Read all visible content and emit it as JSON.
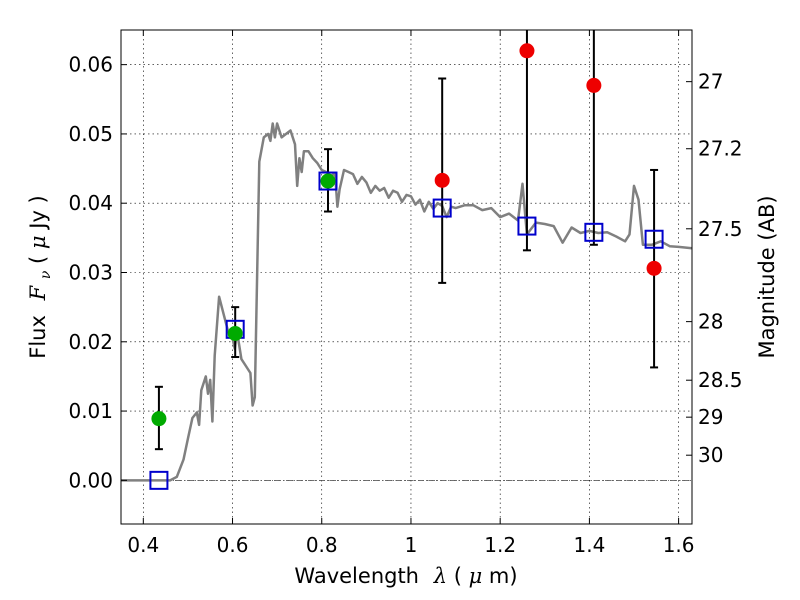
{
  "chart_data": {
    "type": "scatter",
    "xlabel": "Wavelength",
    "xlabel_symbol": "λ",
    "xlabel_unit_open": " (",
    "xlabel_unit_mu": "μ",
    "xlabel_unit_close": "m)",
    "ylabel": "Flux",
    "ylabel_symbol": "F",
    "ylabel_sub": "ν",
    "ylabel_unit_open": " ( ",
    "ylabel_unit_mu": "μ",
    "ylabel_unit_close": "Jy )",
    "y2label": "Magnitude (AB)",
    "xlim": [
      0.35,
      1.63
    ],
    "ylim": [
      -0.0063,
      0.065
    ],
    "grid": true,
    "x_ticks": [
      {
        "v": 0.4,
        "label": "0.4"
      },
      {
        "v": 0.6,
        "label": "0.6"
      },
      {
        "v": 0.8,
        "label": "0.8"
      },
      {
        "v": 1.0,
        "label": "1"
      },
      {
        "v": 1.2,
        "label": "1.2"
      },
      {
        "v": 1.4,
        "label": "1.4"
      },
      {
        "v": 1.6,
        "label": "1.6"
      }
    ],
    "y_ticks": [
      {
        "v": 0.0,
        "label": "0.00"
      },
      {
        "v": 0.01,
        "label": "0.01"
      },
      {
        "v": 0.02,
        "label": "0.02"
      },
      {
        "v": 0.03,
        "label": "0.03"
      },
      {
        "v": 0.04,
        "label": "0.04"
      },
      {
        "v": 0.05,
        "label": "0.05"
      },
      {
        "v": 0.06,
        "label": "0.06"
      }
    ],
    "mag_ticks": [
      {
        "mag": 27,
        "label": "27"
      },
      {
        "mag": 27.2,
        "label": "27.2"
      },
      {
        "mag": 27.5,
        "label": "27.5"
      },
      {
        "mag": 28,
        "label": "28"
      },
      {
        "mag": 28.5,
        "label": "28.5"
      },
      {
        "mag": 29,
        "label": "29"
      },
      {
        "mag": 30,
        "label": "30"
      }
    ],
    "model_color": "#808080",
    "model_spectrum": [
      [
        0.35,
        0.0
      ],
      [
        0.46,
        0.0
      ],
      [
        0.475,
        0.0005
      ],
      [
        0.49,
        0.003
      ],
      [
        0.5,
        0.006
      ],
      [
        0.51,
        0.009
      ],
      [
        0.52,
        0.0098
      ],
      [
        0.525,
        0.008
      ],
      [
        0.53,
        0.013
      ],
      [
        0.54,
        0.015
      ],
      [
        0.545,
        0.0125
      ],
      [
        0.55,
        0.0145
      ],
      [
        0.555,
        0.0085
      ],
      [
        0.56,
        0.018
      ],
      [
        0.57,
        0.0265
      ],
      [
        0.58,
        0.024
      ],
      [
        0.59,
        0.0215
      ],
      [
        0.6,
        0.0205
      ],
      [
        0.605,
        0.019
      ],
      [
        0.61,
        0.0215
      ],
      [
        0.615,
        0.0195
      ],
      [
        0.62,
        0.0175
      ],
      [
        0.63,
        0.0165
      ],
      [
        0.64,
        0.0155
      ],
      [
        0.645,
        0.0108
      ],
      [
        0.65,
        0.012
      ],
      [
        0.66,
        0.046
      ],
      [
        0.67,
        0.0495
      ],
      [
        0.68,
        0.05
      ],
      [
        0.685,
        0.049
      ],
      [
        0.69,
        0.0515
      ],
      [
        0.695,
        0.0495
      ],
      [
        0.7,
        0.0515
      ],
      [
        0.71,
        0.0495
      ],
      [
        0.72,
        0.05
      ],
      [
        0.73,
        0.0505
      ],
      [
        0.74,
        0.0485
      ],
      [
        0.745,
        0.0425
      ],
      [
        0.75,
        0.0465
      ],
      [
        0.755,
        0.0445
      ],
      [
        0.76,
        0.0475
      ],
      [
        0.77,
        0.0475
      ],
      [
        0.78,
        0.0465
      ],
      [
        0.79,
        0.0458
      ],
      [
        0.8,
        0.0448
      ],
      [
        0.81,
        0.0445
      ],
      [
        0.82,
        0.044
      ],
      [
        0.83,
        0.0442
      ],
      [
        0.835,
        0.0395
      ],
      [
        0.84,
        0.042
      ],
      [
        0.85,
        0.0448
      ],
      [
        0.86,
        0.0445
      ],
      [
        0.87,
        0.0442
      ],
      [
        0.88,
        0.0428
      ],
      [
        0.89,
        0.0438
      ],
      [
        0.9,
        0.043
      ],
      [
        0.91,
        0.0415
      ],
      [
        0.92,
        0.0425
      ],
      [
        0.93,
        0.0418
      ],
      [
        0.94,
        0.0422
      ],
      [
        0.95,
        0.0408
      ],
      [
        0.96,
        0.0418
      ],
      [
        0.97,
        0.0415
      ],
      [
        0.98,
        0.0402
      ],
      [
        0.99,
        0.0412
      ],
      [
        1.0,
        0.041
      ],
      [
        1.01,
        0.0398
      ],
      [
        1.02,
        0.0405
      ],
      [
        1.03,
        0.0388
      ],
      [
        1.04,
        0.0402
      ],
      [
        1.05,
        0.0392
      ],
      [
        1.06,
        0.04
      ],
      [
        1.07,
        0.0396
      ],
      [
        1.08,
        0.038
      ],
      [
        1.09,
        0.0395
      ],
      [
        1.1,
        0.0393
      ],
      [
        1.12,
        0.0397
      ],
      [
        1.14,
        0.0397
      ],
      [
        1.16,
        0.039
      ],
      [
        1.18,
        0.0393
      ],
      [
        1.2,
        0.038
      ],
      [
        1.22,
        0.0385
      ],
      [
        1.24,
        0.0375
      ],
      [
        1.25,
        0.0428
      ],
      [
        1.26,
        0.0355
      ],
      [
        1.28,
        0.0372
      ],
      [
        1.3,
        0.037
      ],
      [
        1.32,
        0.0367
      ],
      [
        1.34,
        0.0343
      ],
      [
        1.36,
        0.0365
      ],
      [
        1.38,
        0.0357
      ],
      [
        1.4,
        0.036
      ],
      [
        1.42,
        0.0357
      ],
      [
        1.44,
        0.0358
      ],
      [
        1.46,
        0.0352
      ],
      [
        1.48,
        0.0345
      ],
      [
        1.49,
        0.0355
      ],
      [
        1.5,
        0.0425
      ],
      [
        1.51,
        0.0405
      ],
      [
        1.52,
        0.034
      ],
      [
        1.54,
        0.034
      ],
      [
        1.56,
        0.0345
      ],
      [
        1.58,
        0.0338
      ],
      [
        1.6,
        0.0337
      ],
      [
        1.63,
        0.0335
      ]
    ],
    "zero_line": 0.0,
    "square_color": "#0000cc",
    "squares": [
      {
        "x": 0.435,
        "y": 0.0
      },
      {
        "x": 0.606,
        "y": 0.0218
      },
      {
        "x": 0.814,
        "y": 0.0432
      },
      {
        "x": 1.07,
        "y": 0.0393
      },
      {
        "x": 1.26,
        "y": 0.0367
      },
      {
        "x": 1.41,
        "y": 0.0358
      },
      {
        "x": 1.545,
        "y": 0.0348
      }
    ],
    "green_color": "#00aa00",
    "green_points": [
      {
        "x": 0.435,
        "y": 0.0089,
        "lo": 0.0045,
        "hi": 0.0135
      },
      {
        "x": 0.606,
        "y": 0.0212,
        "lo": 0.0178,
        "hi": 0.025
      },
      {
        "x": 0.814,
        "y": 0.0432,
        "lo": 0.0388,
        "hi": 0.0478
      }
    ],
    "red_color": "#ee0000",
    "red_points": [
      {
        "x": 1.07,
        "y": 0.0433,
        "lo": 0.0285,
        "hi": 0.058
      },
      {
        "x": 1.26,
        "y": 0.062,
        "lo": 0.0332,
        "hi": 0.065
      },
      {
        "x": 1.41,
        "y": 0.057,
        "lo": 0.034,
        "hi": 0.065
      },
      {
        "x": 1.545,
        "y": 0.0306,
        "lo": 0.0163,
        "hi": 0.0448
      }
    ]
  }
}
